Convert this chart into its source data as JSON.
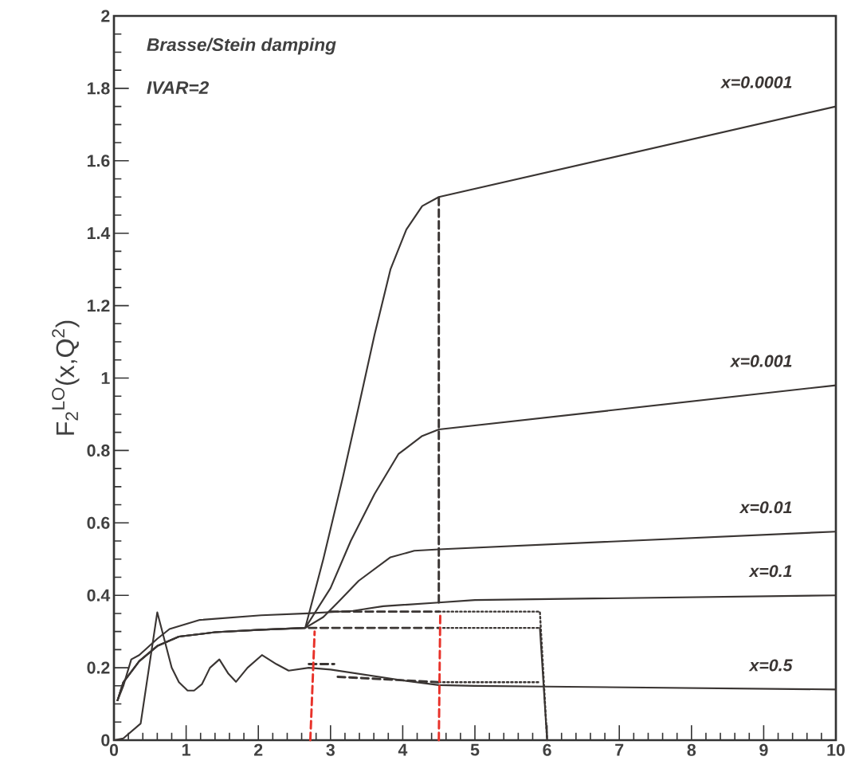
{
  "chart_data": {
    "type": "line",
    "ylabel": "F$_{2}$$^{LO}$(x,Q$^{2}$)",
    "annotations": [
      "Brasse/Stein damping",
      "IVAR=2"
    ],
    "xlim": [
      0,
      10
    ],
    "ylim": [
      0,
      2
    ],
    "xticks": [
      0,
      1,
      2,
      3,
      4,
      5,
      6,
      7,
      8,
      9,
      10
    ],
    "yticks": [
      0,
      0.2,
      0.4,
      0.6,
      0.8,
      1,
      1.2,
      1.4,
      1.6,
      1.8,
      2
    ],
    "series": [
      {
        "name": "x=0.0001",
        "color": "#3a3533",
        "line_style": "solid",
        "x": [
          0.05,
          0.13,
          0.35,
          0.6,
          0.9,
          1.4,
          2.04,
          2.65,
          2.9,
          3.17,
          3.4,
          3.61,
          3.83,
          4.05,
          4.27,
          4.5,
          10
        ],
        "values": [
          0.11,
          0.16,
          0.218,
          0.26,
          0.286,
          0.298,
          0.305,
          0.31,
          0.5,
          0.725,
          0.93,
          1.12,
          1.3,
          1.41,
          1.475,
          1.5,
          1.75
        ]
      },
      {
        "name": "x=0.001",
        "color": "#3a3533",
        "line_style": "solid",
        "x": [
          0.05,
          0.13,
          0.35,
          0.6,
          0.9,
          1.4,
          2.04,
          2.65,
          3.0,
          3.28,
          3.61,
          3.94,
          4.27,
          4.5,
          10
        ],
        "values": [
          0.11,
          0.16,
          0.218,
          0.26,
          0.286,
          0.298,
          0.305,
          0.31,
          0.42,
          0.55,
          0.68,
          0.79,
          0.84,
          0.858,
          0.98
        ]
      },
      {
        "name": "x=0.01",
        "color": "#3a3533",
        "line_style": "solid",
        "x": [
          0.05,
          0.13,
          0.35,
          0.6,
          0.9,
          1.4,
          2.04,
          2.65,
          2.9,
          3.1,
          3.39,
          3.83,
          4.16,
          4.5,
          10
        ],
        "values": [
          0.11,
          0.16,
          0.218,
          0.26,
          0.286,
          0.298,
          0.305,
          0.31,
          0.34,
          0.38,
          0.44,
          0.505,
          0.523,
          0.527,
          0.576
        ]
      },
      {
        "name": "x=0.1",
        "color": "#3a3533",
        "line_style": "solid",
        "x": [
          0.05,
          0.13,
          0.24,
          0.35,
          0.6,
          0.77,
          1.19,
          2.04,
          2.68,
          3.31,
          3.73,
          4.5,
          5.0,
          10
        ],
        "values": [
          0.11,
          0.15,
          0.223,
          0.235,
          0.28,
          0.307,
          0.332,
          0.345,
          0.35,
          0.357,
          0.37,
          0.38,
          0.387,
          0.4
        ]
      },
      {
        "name": "x=0.5",
        "color": "#3a3533",
        "line_style": "solid",
        "x": [
          0,
          0.13,
          0.37,
          0.6,
          0.8,
          0.9,
          1.02,
          1.11,
          1.22,
          1.33,
          1.46,
          1.58,
          1.69,
          1.85,
          2.05,
          2.25,
          2.42,
          2.7,
          3.0,
          3.5,
          4.0,
          4.5,
          5.0,
          6.0,
          10
        ],
        "values": [
          0,
          0.005,
          0.046,
          0.353,
          0.2,
          0.16,
          0.137,
          0.137,
          0.155,
          0.2,
          0.223,
          0.185,
          0.161,
          0.2,
          0.235,
          0.21,
          0.192,
          0.2,
          0.195,
          0.18,
          0.165,
          0.152,
          0.15,
          0.148,
          0.14
        ]
      },
      {
        "color": "#3a3533",
        "line_style": "dashed",
        "x": [
          2.7,
          4.5
        ],
        "values": [
          0.31,
          0.31
        ]
      },
      {
        "color": "#3a3533",
        "line_style": "dotted",
        "x": [
          4.5,
          5.9
        ],
        "values": [
          0.31,
          0.31
        ]
      },
      {
        "color": "#3a3533",
        "line_style": "solid",
        "x": [
          5.9,
          6.0
        ],
        "values": [
          0.31,
          0
        ]
      },
      {
        "color": "#3a3533",
        "line_style": "dashed",
        "x": [
          3.0,
          4.5
        ],
        "values": [
          0.355,
          0.355
        ]
      },
      {
        "color": "#3a3533",
        "line_style": "dotted",
        "x": [
          4.5,
          5.9,
          6.0
        ],
        "values": [
          0.355,
          0.355,
          0
        ]
      },
      {
        "color": "#3a3533",
        "line_style": "dashed",
        "x": [
          2.7,
          3.05
        ],
        "values": [
          0.21,
          0.21
        ]
      },
      {
        "color": "#3a3533",
        "line_style": "dashed",
        "x": [
          3.1,
          4.5
        ],
        "values": [
          0.175,
          0.16
        ]
      },
      {
        "color": "#3a3533",
        "line_style": "dotted",
        "x": [
          4.5,
          5.9
        ],
        "values": [
          0.16,
          0.16
        ]
      },
      {
        "color": "#3a3533",
        "line_style": "dashed",
        "x": [
          4.5,
          4.5
        ],
        "values": [
          0.38,
          1.5
        ]
      },
      {
        "color": "#e8322a",
        "line_style": "dashed",
        "x": [
          2.72,
          2.78
        ],
        "values": [
          0,
          0.3
        ]
      },
      {
        "color": "#e8322a",
        "line_style": "dashed",
        "x": [
          4.5,
          4.52
        ],
        "values": [
          0,
          0.35
        ]
      }
    ]
  }
}
